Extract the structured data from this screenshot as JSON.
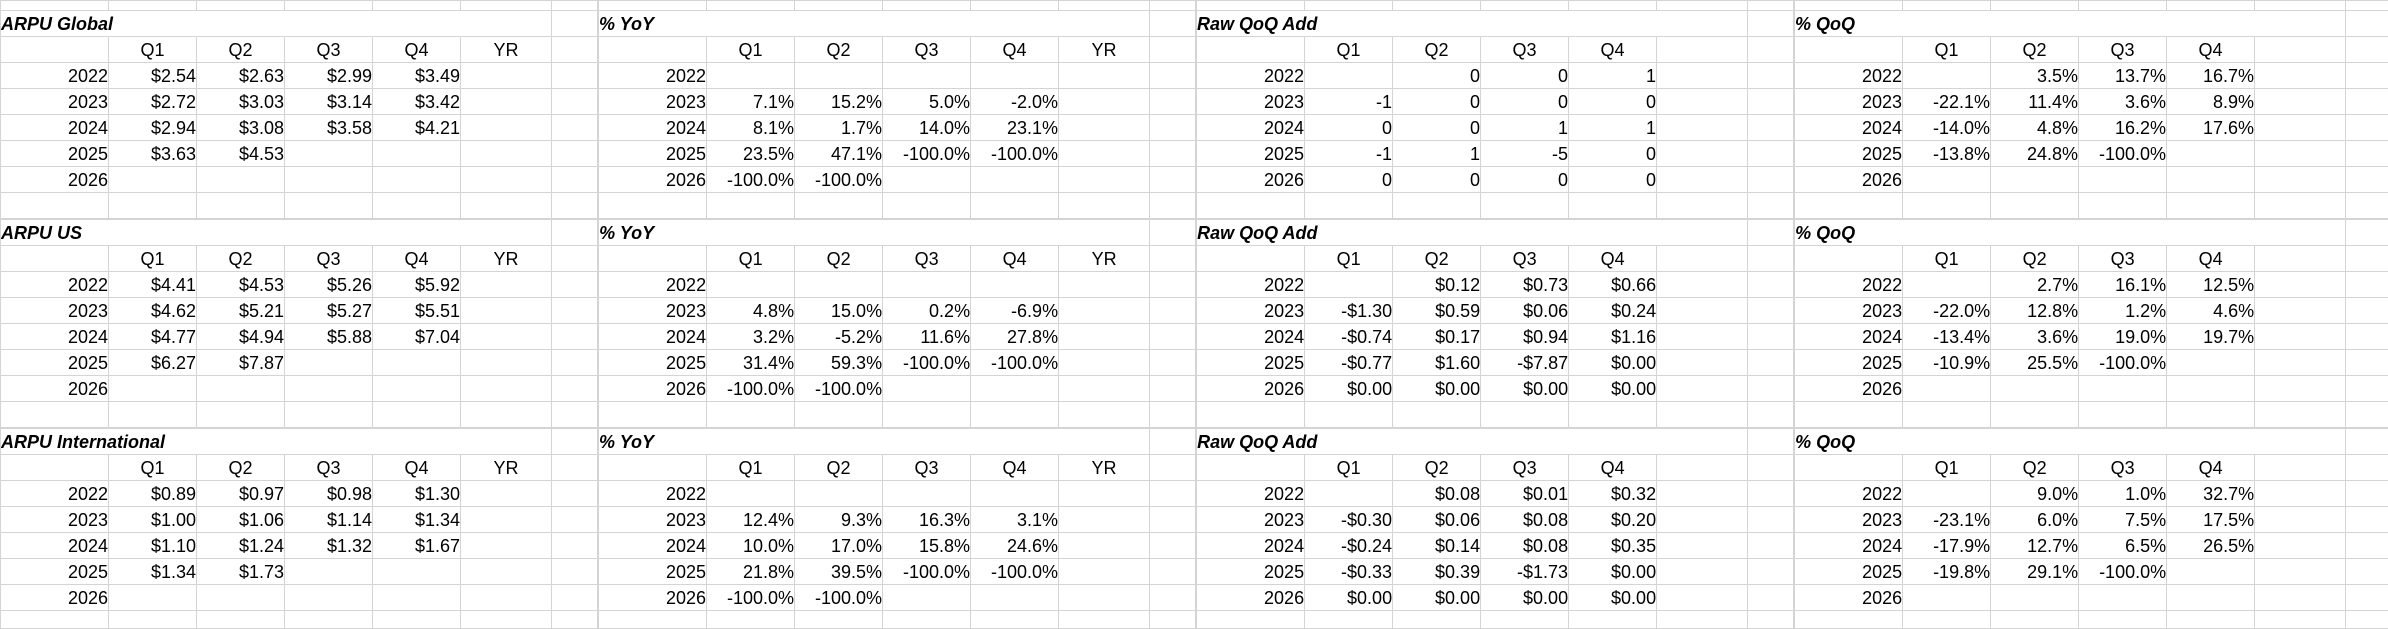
{
  "sheet": {
    "years": [
      "2022",
      "2023",
      "2024",
      "2025",
      "2026"
    ],
    "colors": {
      "gridline": "#d4d4d4",
      "cell_border": "#000000",
      "background": "#ffffff",
      "text": "#000000"
    }
  },
  "bands": [
    {
      "tables": [
        {
          "title": "ARPU Global",
          "headers": [
            "Q1",
            "Q2",
            "Q3",
            "Q4",
            "YR"
          ],
          "rows": [
            {
              "cells": [
                "$2.54",
                "$2.63",
                "$2.99",
                "$3.49",
                ""
              ]
            },
            {
              "cells": [
                "$2.72",
                "$3.03",
                "$3.14",
                "$3.42",
                ""
              ]
            },
            {
              "cells": [
                "$2.94",
                "$3.08",
                "$3.58",
                "$4.21",
                ""
              ]
            },
            {
              "cells": [
                "$3.63",
                "$4.53",
                "",
                "",
                ""
              ]
            },
            {
              "cells": [
                "",
                "",
                "",
                "",
                ""
              ]
            }
          ]
        },
        {
          "title": "% YoY",
          "headers": [
            "Q1",
            "Q2",
            "Q3",
            "Q4",
            "YR"
          ],
          "rows": [
            {
              "cells": [
                "",
                "",
                "",
                "",
                ""
              ]
            },
            {
              "cells": [
                "7.1%",
                "15.2%",
                "5.0%",
                "-2.0%",
                ""
              ]
            },
            {
              "cells": [
                "8.1%",
                "1.7%",
                "14.0%",
                "23.1%",
                ""
              ]
            },
            {
              "cells": [
                "23.5%",
                "47.1%",
                "-100.0%",
                "-100.0%",
                ""
              ]
            },
            {
              "cells": [
                "-100.0%",
                "-100.0%",
                "",
                "",
                ""
              ]
            }
          ]
        },
        {
          "title": "Raw QoQ Add",
          "headers": [
            "Q1",
            "Q2",
            "Q3",
            "Q4",
            ""
          ],
          "rows": [
            {
              "cells": [
                "",
                "0",
                "0",
                "1",
                ""
              ]
            },
            {
              "cells": [
                "-1",
                "0",
                "0",
                "0",
                ""
              ]
            },
            {
              "cells": [
                "0",
                "0",
                "1",
                "1",
                ""
              ]
            },
            {
              "cells": [
                "-1",
                "1",
                "-5",
                "0",
                ""
              ]
            },
            {
              "cells": [
                "0",
                "0",
                "0",
                "0",
                ""
              ]
            }
          ]
        },
        {
          "title": "% QoQ",
          "headers": [
            "Q1",
            "Q2",
            "Q3",
            "Q4",
            ""
          ],
          "rows": [
            {
              "cells": [
                "",
                "3.5%",
                "13.7%",
                "16.7%",
                ""
              ]
            },
            {
              "cells": [
                "-22.1%",
                "11.4%",
                "3.6%",
                "8.9%",
                ""
              ]
            },
            {
              "cells": [
                "-14.0%",
                "4.8%",
                "16.2%",
                "17.6%",
                ""
              ]
            },
            {
              "cells": [
                "-13.8%",
                "24.8%",
                "-100.0%",
                "",
                ""
              ]
            },
            {
              "cells": [
                "",
                "",
                "",
                "",
                ""
              ]
            }
          ]
        }
      ]
    },
    {
      "tables": [
        {
          "title": "ARPU US",
          "headers": [
            "Q1",
            "Q2",
            "Q3",
            "Q4",
            "YR"
          ],
          "rows": [
            {
              "cells": [
                "$4.41",
                "$4.53",
                "$5.26",
                "$5.92",
                ""
              ]
            },
            {
              "cells": [
                "$4.62",
                "$5.21",
                "$5.27",
                "$5.51",
                ""
              ]
            },
            {
              "cells": [
                "$4.77",
                "$4.94",
                "$5.88",
                "$7.04",
                ""
              ]
            },
            {
              "cells": [
                "$6.27",
                "$7.87",
                "",
                "",
                ""
              ]
            },
            {
              "cells": [
                "",
                "",
                "",
                "",
                ""
              ]
            }
          ]
        },
        {
          "title": "% YoY",
          "headers": [
            "Q1",
            "Q2",
            "Q3",
            "Q4",
            "YR"
          ],
          "rows": [
            {
              "cells": [
                "",
                "",
                "",
                "",
                ""
              ]
            },
            {
              "cells": [
                "4.8%",
                "15.0%",
                "0.2%",
                "-6.9%",
                ""
              ]
            },
            {
              "cells": [
                "3.2%",
                "-5.2%",
                "11.6%",
                "27.8%",
                ""
              ]
            },
            {
              "cells": [
                "31.4%",
                "59.3%",
                "-100.0%",
                "-100.0%",
                ""
              ]
            },
            {
              "cells": [
                "-100.0%",
                "-100.0%",
                "",
                "",
                ""
              ]
            }
          ]
        },
        {
          "title": "Raw QoQ Add",
          "headers": [
            "Q1",
            "Q2",
            "Q3",
            "Q4",
            ""
          ],
          "rows": [
            {
              "cells": [
                "",
                "$0.12",
                "$0.73",
                "$0.66",
                ""
              ]
            },
            {
              "cells": [
                "-$1.30",
                "$0.59",
                "$0.06",
                "$0.24",
                ""
              ]
            },
            {
              "cells": [
                "-$0.74",
                "$0.17",
                "$0.94",
                "$1.16",
                ""
              ]
            },
            {
              "cells": [
                "-$0.77",
                "$1.60",
                "-$7.87",
                "$0.00",
                ""
              ]
            },
            {
              "cells": [
                "$0.00",
                "$0.00",
                "$0.00",
                "$0.00",
                ""
              ]
            }
          ]
        },
        {
          "title": "% QoQ",
          "headers": [
            "Q1",
            "Q2",
            "Q3",
            "Q4",
            ""
          ],
          "rows": [
            {
              "cells": [
                "",
                "2.7%",
                "16.1%",
                "12.5%",
                ""
              ]
            },
            {
              "cells": [
                "-22.0%",
                "12.8%",
                "1.2%",
                "4.6%",
                ""
              ]
            },
            {
              "cells": [
                "-13.4%",
                "3.6%",
                "19.0%",
                "19.7%",
                ""
              ]
            },
            {
              "cells": [
                "-10.9%",
                "25.5%",
                "-100.0%",
                "",
                ""
              ]
            },
            {
              "cells": [
                "",
                "",
                "",
                "",
                ""
              ]
            }
          ]
        }
      ]
    },
    {
      "tables": [
        {
          "title": "ARPU International",
          "headers": [
            "Q1",
            "Q2",
            "Q3",
            "Q4",
            "YR"
          ],
          "rows": [
            {
              "cells": [
                "$0.89",
                "$0.97",
                "$0.98",
                "$1.30",
                ""
              ]
            },
            {
              "cells": [
                "$1.00",
                "$1.06",
                "$1.14",
                "$1.34",
                ""
              ]
            },
            {
              "cells": [
                "$1.10",
                "$1.24",
                "$1.32",
                "$1.67",
                ""
              ]
            },
            {
              "cells": [
                "$1.34",
                "$1.73",
                "",
                "",
                ""
              ]
            },
            {
              "cells": [
                "",
                "",
                "",
                "",
                ""
              ]
            }
          ]
        },
        {
          "title": "% YoY",
          "headers": [
            "Q1",
            "Q2",
            "Q3",
            "Q4",
            "YR"
          ],
          "rows": [
            {
              "cells": [
                "",
                "",
                "",
                "",
                ""
              ]
            },
            {
              "cells": [
                "12.4%",
                "9.3%",
                "16.3%",
                "3.1%",
                ""
              ]
            },
            {
              "cells": [
                "10.0%",
                "17.0%",
                "15.8%",
                "24.6%",
                ""
              ]
            },
            {
              "cells": [
                "21.8%",
                "39.5%",
                "-100.0%",
                "-100.0%",
                ""
              ]
            },
            {
              "cells": [
                "-100.0%",
                "-100.0%",
                "",
                "",
                ""
              ]
            }
          ]
        },
        {
          "title": "Raw QoQ Add",
          "headers": [
            "Q1",
            "Q2",
            "Q3",
            "Q4",
            ""
          ],
          "rows": [
            {
              "cells": [
                "",
                "$0.08",
                "$0.01",
                "$0.32",
                ""
              ]
            },
            {
              "cells": [
                "-$0.30",
                "$0.06",
                "$0.08",
                "$0.20",
                ""
              ]
            },
            {
              "cells": [
                "-$0.24",
                "$0.14",
                "$0.08",
                "$0.35",
                ""
              ]
            },
            {
              "cells": [
                "-$0.33",
                "$0.39",
                "-$1.73",
                "$0.00",
                ""
              ]
            },
            {
              "cells": [
                "$0.00",
                "$0.00",
                "$0.00",
                "$0.00",
                ""
              ]
            }
          ]
        },
        {
          "title": "% QoQ",
          "headers": [
            "Q1",
            "Q2",
            "Q3",
            "Q4",
            ""
          ],
          "rows": [
            {
              "cells": [
                "",
                "9.0%",
                "1.0%",
                "32.7%",
                ""
              ]
            },
            {
              "cells": [
                "-23.1%",
                "6.0%",
                "7.5%",
                "17.5%",
                ""
              ]
            },
            {
              "cells": [
                "-17.9%",
                "12.7%",
                "6.5%",
                "26.5%",
                ""
              ]
            },
            {
              "cells": [
                "-19.8%",
                "29.1%",
                "-100.0%",
                "",
                ""
              ]
            },
            {
              "cells": [
                "",
                "",
                "",
                "",
                ""
              ]
            }
          ]
        }
      ]
    }
  ]
}
